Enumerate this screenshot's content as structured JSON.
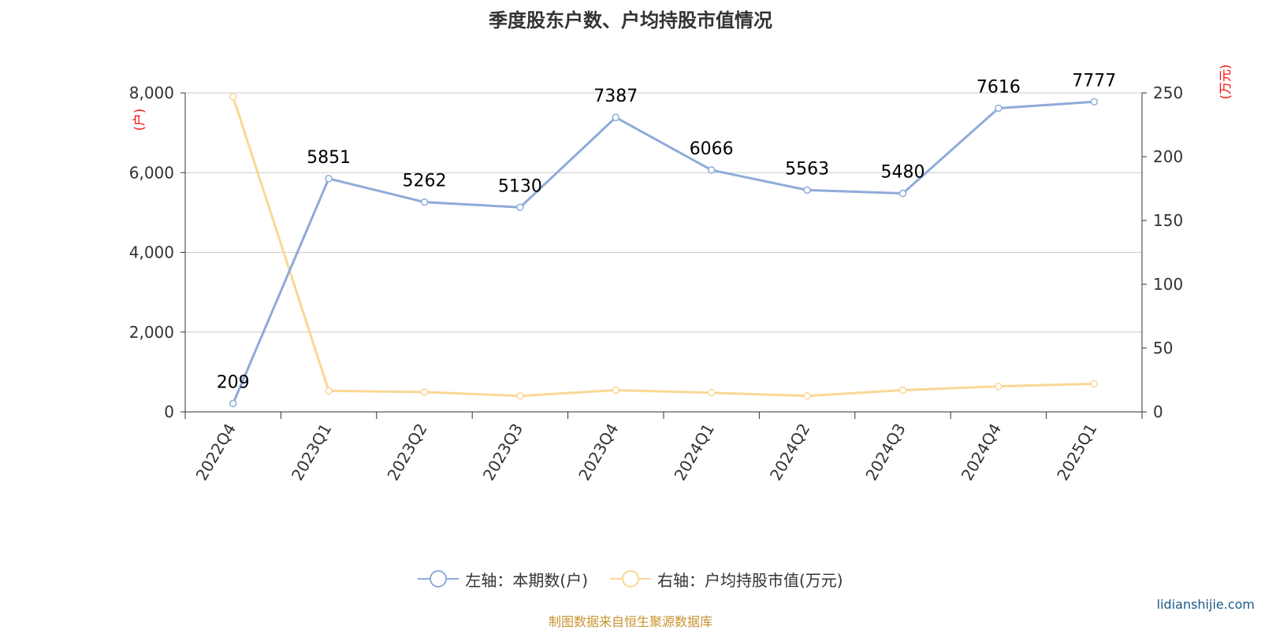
{
  "title": "季度股东户数、户均持股市值情况",
  "chart_data": {
    "type": "line",
    "categories": [
      "2022Q4",
      "2023Q1",
      "2023Q2",
      "2023Q3",
      "2023Q4",
      "2024Q1",
      "2024Q2",
      "2024Q3",
      "2024Q4",
      "2025Q1"
    ],
    "series": [
      {
        "name": "左轴：本期数(户)",
        "axis": "left",
        "color": "#8eabd9",
        "values": [
          209,
          5851,
          5262,
          5130,
          7387,
          6066,
          5563,
          5480,
          7616,
          7777
        ],
        "show_labels": true
      },
      {
        "name": "右轴：户均持股市值(万元)",
        "axis": "right",
        "color": "#fad795",
        "values": [
          247,
          16.5,
          15.5,
          12.5,
          17,
          15,
          12.5,
          17,
          20,
          22
        ],
        "show_labels": false
      }
    ],
    "left_axis": {
      "unit": "(户)",
      "ylim": [
        0,
        8000
      ],
      "ticks": [
        "0",
        "2,000",
        "4,000",
        "6,000",
        "8,000"
      ]
    },
    "right_axis": {
      "unit": "(万元)",
      "ylim": [
        0,
        250
      ],
      "ticks": [
        "0",
        "50",
        "100",
        "150",
        "200",
        "250"
      ]
    },
    "grid": true,
    "legend_position": "bottom"
  },
  "source_note": "制图数据来自恒生聚源数据库",
  "watermark": "lidianshijie.com"
}
